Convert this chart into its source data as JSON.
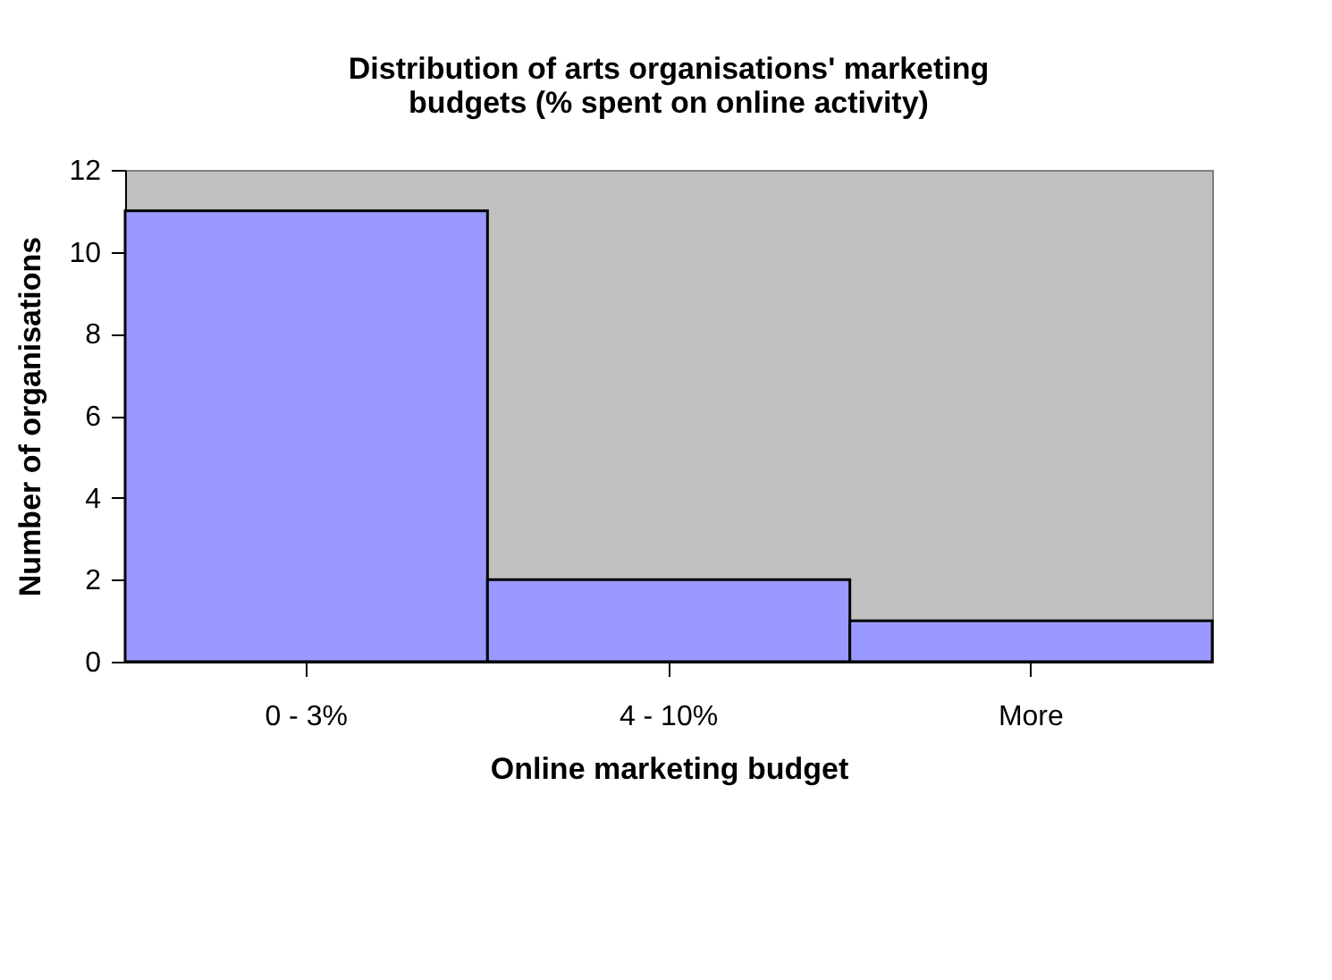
{
  "chart_data": {
    "type": "bar",
    "title": "Distribution of arts organisations' marketing budgets (% spent on online activity)",
    "xlabel": "Online marketing budget",
    "ylabel": "Number of organisations",
    "categories": [
      "0 - 3%",
      "4 - 10%",
      "More"
    ],
    "values": [
      11,
      2,
      1
    ],
    "color": "#9999ff",
    "ylim": [
      0,
      12
    ],
    "yticks": [
      0,
      2,
      4,
      6,
      8,
      10,
      12
    ],
    "grid": false
  }
}
